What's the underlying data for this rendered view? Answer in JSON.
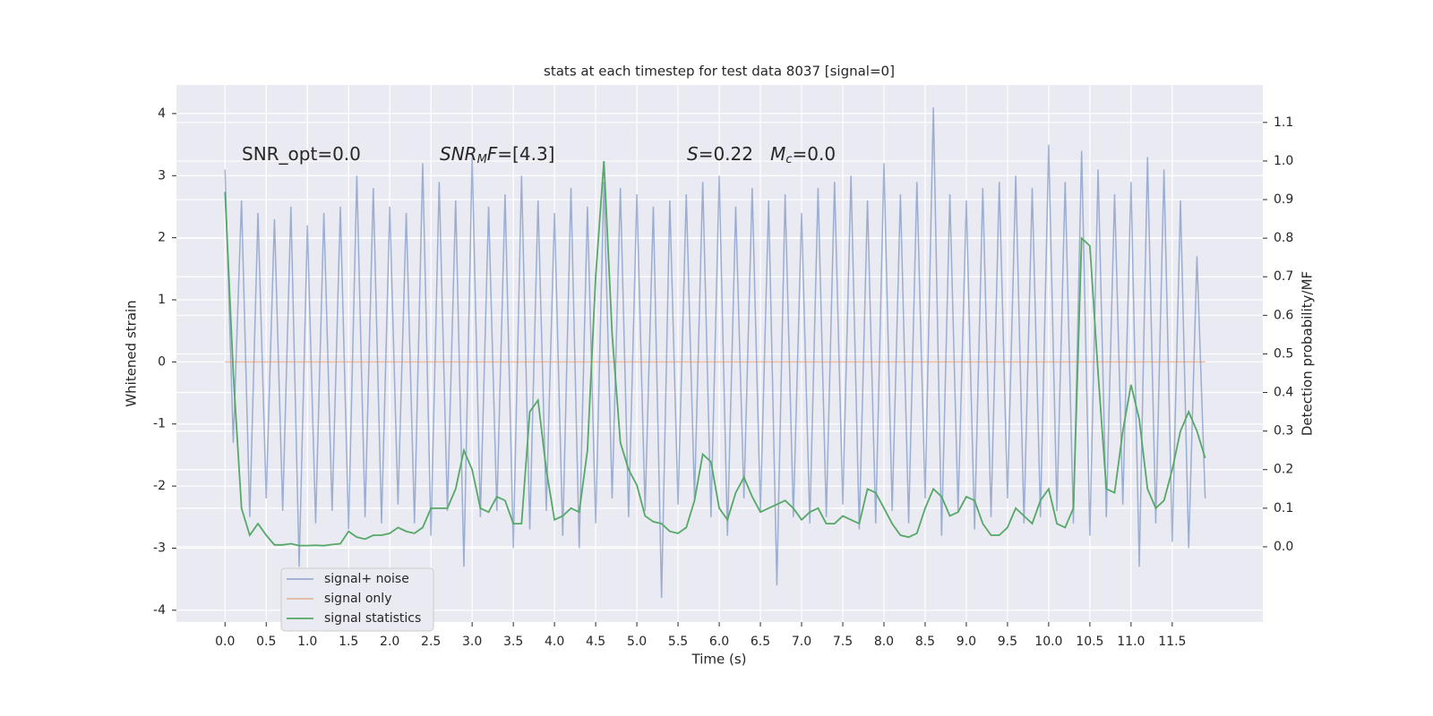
{
  "chart_data": {
    "type": "line",
    "title": "stats at each timestep for test data 8037 [signal=0]",
    "xlabel": "Time (s)",
    "ylabel": "Whitened strain",
    "y2label": "Detection probability/MF",
    "x": [
      0.0,
      0.1,
      0.2,
      0.3,
      0.4,
      0.5,
      0.6,
      0.7,
      0.8,
      0.9,
      1.0,
      1.1,
      1.2,
      1.3,
      1.4,
      1.5,
      1.6,
      1.7,
      1.8,
      1.9,
      2.0,
      2.1,
      2.2,
      2.3,
      2.4,
      2.5,
      2.6,
      2.7,
      2.8,
      2.9,
      3.0,
      3.1,
      3.2,
      3.3,
      3.4,
      3.5,
      3.6,
      3.7,
      3.8,
      3.9,
      4.0,
      4.1,
      4.2,
      4.3,
      4.4,
      4.5,
      4.6,
      4.7,
      4.8,
      4.9,
      5.0,
      5.1,
      5.2,
      5.3,
      5.4,
      5.5,
      5.6,
      5.7,
      5.8,
      5.9,
      6.0,
      6.1,
      6.2,
      6.3,
      6.4,
      6.5,
      6.6,
      6.7,
      6.8,
      6.9,
      7.0,
      7.1,
      7.2,
      7.3,
      7.4,
      7.5,
      7.6,
      7.7,
      7.8,
      7.9,
      8.0,
      8.1,
      8.2,
      8.3,
      8.4,
      8.5,
      8.6,
      8.7,
      8.8,
      8.9,
      9.0,
      9.1,
      9.2,
      9.3,
      9.4,
      9.5,
      9.6,
      9.7,
      9.8,
      9.9,
      10.0,
      10.1,
      10.2,
      10.3,
      10.4,
      10.5,
      10.6,
      10.7,
      10.8,
      10.9,
      11.0,
      11.1,
      11.2,
      11.3,
      11.4,
      11.5,
      11.6,
      11.7,
      11.8,
      11.9
    ],
    "series": [
      {
        "name": "signal+ noise",
        "color": "#4c72b0",
        "opacity": 0.5,
        "values": [
          3.1,
          -1.3,
          2.6,
          -2.5,
          2.4,
          -2.2,
          2.3,
          -2.4,
          2.5,
          -3.3,
          2.2,
          -2.6,
          2.4,
          -2.4,
          2.5,
          -2.7,
          3.0,
          -2.5,
          2.8,
          -2.6,
          2.5,
          -2.3,
          2.4,
          -2.6,
          3.2,
          -2.8,
          2.9,
          -2.4,
          2.6,
          -3.3,
          3.3,
          -2.5,
          2.5,
          -2.4,
          2.7,
          -3.0,
          3.0,
          -2.7,
          2.6,
          -2.4,
          2.4,
          -2.8,
          2.8,
          -3.0,
          2.5,
          -2.6,
          2.9,
          -2.2,
          2.8,
          -2.5,
          2.7,
          -2.4,
          2.5,
          -3.8,
          2.6,
          -2.3,
          2.7,
          -2.2,
          2.9,
          -2.5,
          3.0,
          -2.8,
          2.5,
          -2.2,
          2.8,
          -2.4,
          2.6,
          -3.6,
          2.7,
          -2.5,
          2.4,
          -2.6,
          2.8,
          -2.5,
          2.9,
          -2.3,
          3.0,
          -2.7,
          2.6,
          -2.6,
          3.2,
          -2.4,
          2.7,
          -2.6,
          2.9,
          -2.2,
          4.1,
          -2.8,
          2.7,
          -2.4,
          2.6,
          -2.7,
          2.8,
          -2.5,
          2.9,
          -2.2,
          3.0,
          -2.6,
          2.8,
          -2.5,
          3.5,
          -2.4,
          2.9,
          -2.6,
          3.4,
          -2.8,
          3.1,
          -2.5,
          2.7,
          -2.3,
          2.9,
          -3.3,
          3.3,
          -2.6,
          3.1,
          -2.9,
          2.6,
          -3.0,
          1.7,
          -2.2
        ]
      },
      {
        "name": "signal only",
        "color": "#dd8452",
        "opacity": 0.5,
        "values": [
          0,
          0,
          0,
          0,
          0,
          0,
          0,
          0,
          0,
          0,
          0,
          0,
          0,
          0,
          0,
          0,
          0,
          0,
          0,
          0,
          0,
          0,
          0,
          0,
          0,
          0,
          0,
          0,
          0,
          0,
          0,
          0,
          0,
          0,
          0,
          0,
          0,
          0,
          0,
          0,
          0,
          0,
          0,
          0,
          0,
          0,
          0,
          0,
          0,
          0,
          0,
          0,
          0,
          0,
          0,
          0,
          0,
          0,
          0,
          0,
          0,
          0,
          0,
          0,
          0,
          0,
          0,
          0,
          0,
          0,
          0,
          0,
          0,
          0,
          0,
          0,
          0,
          0,
          0,
          0,
          0,
          0,
          0,
          0,
          0,
          0,
          0,
          0,
          0,
          0,
          0,
          0,
          0,
          0,
          0,
          0,
          0,
          0,
          0,
          0,
          0,
          0,
          0,
          0,
          0,
          0,
          0,
          0,
          0,
          0,
          0,
          0,
          0,
          0,
          0,
          0,
          0,
          0,
          0,
          0
        ]
      },
      {
        "name": "signal statistics",
        "color": "#55a868",
        "opacity": 1,
        "axis": "y2",
        "values": [
          0.92,
          0.45,
          0.1,
          0.03,
          0.06,
          0.03,
          0.005,
          0.005,
          0.008,
          0.003,
          0.003,
          0.004,
          0.003,
          0.006,
          0.008,
          0.04,
          0.025,
          0.02,
          0.03,
          0.03,
          0.035,
          0.05,
          0.04,
          0.035,
          0.05,
          0.1,
          0.1,
          0.1,
          0.15,
          0.25,
          0.2,
          0.1,
          0.09,
          0.13,
          0.12,
          0.06,
          0.06,
          0.35,
          0.38,
          0.2,
          0.07,
          0.08,
          0.1,
          0.09,
          0.25,
          0.7,
          1.0,
          0.55,
          0.27,
          0.2,
          0.16,
          0.08,
          0.065,
          0.06,
          0.04,
          0.035,
          0.05,
          0.12,
          0.24,
          0.22,
          0.1,
          0.07,
          0.14,
          0.18,
          0.13,
          0.09,
          0.1,
          0.11,
          0.12,
          0.1,
          0.07,
          0.09,
          0.1,
          0.06,
          0.06,
          0.08,
          0.07,
          0.06,
          0.15,
          0.14,
          0.1,
          0.06,
          0.03,
          0.025,
          0.035,
          0.1,
          0.15,
          0.13,
          0.08,
          0.09,
          0.13,
          0.12,
          0.06,
          0.03,
          0.03,
          0.05,
          0.1,
          0.08,
          0.06,
          0.12,
          0.15,
          0.06,
          0.05,
          0.1,
          0.8,
          0.78,
          0.45,
          0.15,
          0.14,
          0.3,
          0.42,
          0.33,
          0.15,
          0.1,
          0.12,
          0.2,
          0.3,
          0.35,
          0.3,
          0.23
        ]
      }
    ],
    "xlim": [
      -0.59,
      12.6
    ],
    "xticks": [
      {
        "value": 0,
        "label": "0.0"
      },
      0.5,
      {
        "value": 1,
        "label": "1.0"
      },
      1.5,
      {
        "value": 2,
        "label": "2.0"
      },
      2.5,
      {
        "value": 3,
        "label": "3.0"
      },
      3.5,
      {
        "value": 4,
        "label": "4.0"
      },
      4.5,
      {
        "value": 5,
        "label": "5.0"
      },
      5.5,
      {
        "value": 6,
        "label": "6.0"
      },
      6.5,
      {
        "value": 7,
        "label": "7.0"
      },
      7.5,
      {
        "value": 8,
        "label": "8.0"
      },
      8.5,
      {
        "value": 9,
        "label": "9.0"
      },
      9.5,
      {
        "value": 10,
        "label": "10.0"
      },
      10.5,
      {
        "value": 11,
        "label": "11.0"
      },
      11.5
    ],
    "ylim": [
      -4.19,
      4.46
    ],
    "yticks": [
      -4,
      -3,
      -2,
      -1,
      0,
      1,
      2,
      3,
      4
    ],
    "y2lim": [
      -0.195,
      1.197
    ],
    "y2ticks": [
      {
        "value": 0,
        "label": "0.0"
      },
      0.1,
      0.2,
      0.3,
      0.4,
      0.5,
      0.6,
      0.7,
      0.8,
      0.9,
      {
        "value": 1,
        "label": "1.0"
      },
      1.1
    ],
    "grid": true,
    "annotations": [
      [
        {
          "t": "SNR_opt=0.0"
        }
      ],
      [
        {
          "t": "SNR",
          "italic": true
        },
        {
          "t": "M",
          "italic": true,
          "sub": true
        },
        {
          "t": "F",
          "italic": true
        },
        {
          "t": "=[4.3]"
        }
      ],
      [
        {
          "t": "S",
          "italic": true
        },
        {
          "t": "=0.22   "
        },
        {
          "t": "M",
          "italic": true
        },
        {
          "t": "c",
          "italic": true,
          "sub": true
        },
        {
          "t": "=0.0"
        }
      ]
    ]
  }
}
